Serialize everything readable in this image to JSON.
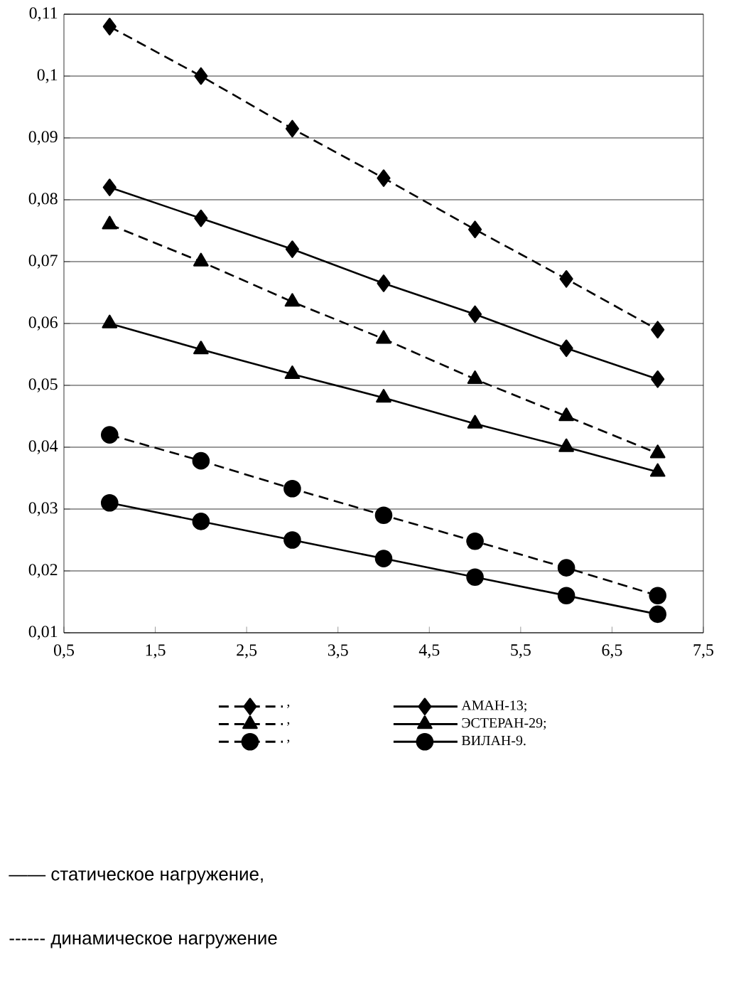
{
  "chart_data": {
    "type": "line",
    "x": [
      1,
      2,
      3,
      4,
      5,
      6,
      7
    ],
    "series": [
      {
        "name": ",",
        "color": "#000000",
        "marker": "diamond",
        "line_style": "dashed",
        "values": [
          0.108,
          0.1,
          0.0915,
          0.0835,
          0.0752,
          0.0672,
          0.059
        ]
      },
      {
        "name": "АМАН-13;",
        "color": "#000000",
        "marker": "diamond",
        "line_style": "solid",
        "values": [
          0.082,
          0.077,
          0.072,
          0.0665,
          0.0615,
          0.056,
          0.051
        ]
      },
      {
        "name": ",",
        "color": "#000000",
        "marker": "triangle",
        "line_style": "dashed",
        "values": [
          0.076,
          0.07,
          0.0635,
          0.0575,
          0.051,
          0.045,
          0.039
        ]
      },
      {
        "name": "ЭСТЕРАН-29;",
        "color": "#000000",
        "marker": "triangle",
        "line_style": "solid",
        "values": [
          0.06,
          0.0558,
          0.0518,
          0.048,
          0.0438,
          0.04,
          0.036
        ]
      },
      {
        "name": ",",
        "color": "#000000",
        "marker": "circle",
        "line_style": "dashed",
        "values": [
          0.042,
          0.0378,
          0.0333,
          0.029,
          0.0248,
          0.0205,
          0.016
        ]
      },
      {
        "name": "ВИЛАН-9.",
        "color": "#000000",
        "marker": "circle",
        "line_style": "solid",
        "values": [
          0.031,
          0.028,
          0.025,
          0.022,
          0.019,
          0.016,
          0.013
        ]
      }
    ],
    "xlim": [
      0.5,
      7.5
    ],
    "xticks": [
      {
        "value": 0.5,
        "label": "0,5"
      },
      {
        "value": 1.5,
        "label": "1,5"
      },
      {
        "value": 2.5,
        "label": "2,5"
      },
      {
        "value": 3.5,
        "label": "3,5"
      },
      {
        "value": 4.5,
        "label": "4,5"
      },
      {
        "value": 5.5,
        "label": "5,5"
      },
      {
        "value": 6.5,
        "label": "6,5"
      },
      {
        "value": 7.5,
        "label": "7,5"
      }
    ],
    "ylim": [
      0.01,
      0.11
    ],
    "yticks": [
      {
        "value": 0.01,
        "label": "0,01"
      },
      {
        "value": 0.02,
        "label": "0,02"
      },
      {
        "value": 0.03,
        "label": "0,03"
      },
      {
        "value": 0.04,
        "label": "0,04"
      },
      {
        "value": 0.05,
        "label": "0,05"
      },
      {
        "value": 0.06,
        "label": "0,06"
      },
      {
        "value": 0.07,
        "label": "0,07"
      },
      {
        "value": 0.08,
        "label": "0,08"
      },
      {
        "value": 0.09,
        "label": "0,09"
      },
      {
        "value": 0.1,
        "label": "0,1"
      },
      {
        "value": 0.11,
        "label": "0,11"
      }
    ],
    "grid": "y",
    "legend": "bottom",
    "annotations": [
      "—— статическое нагружение,",
      "------ динамическое нагружение"
    ]
  }
}
